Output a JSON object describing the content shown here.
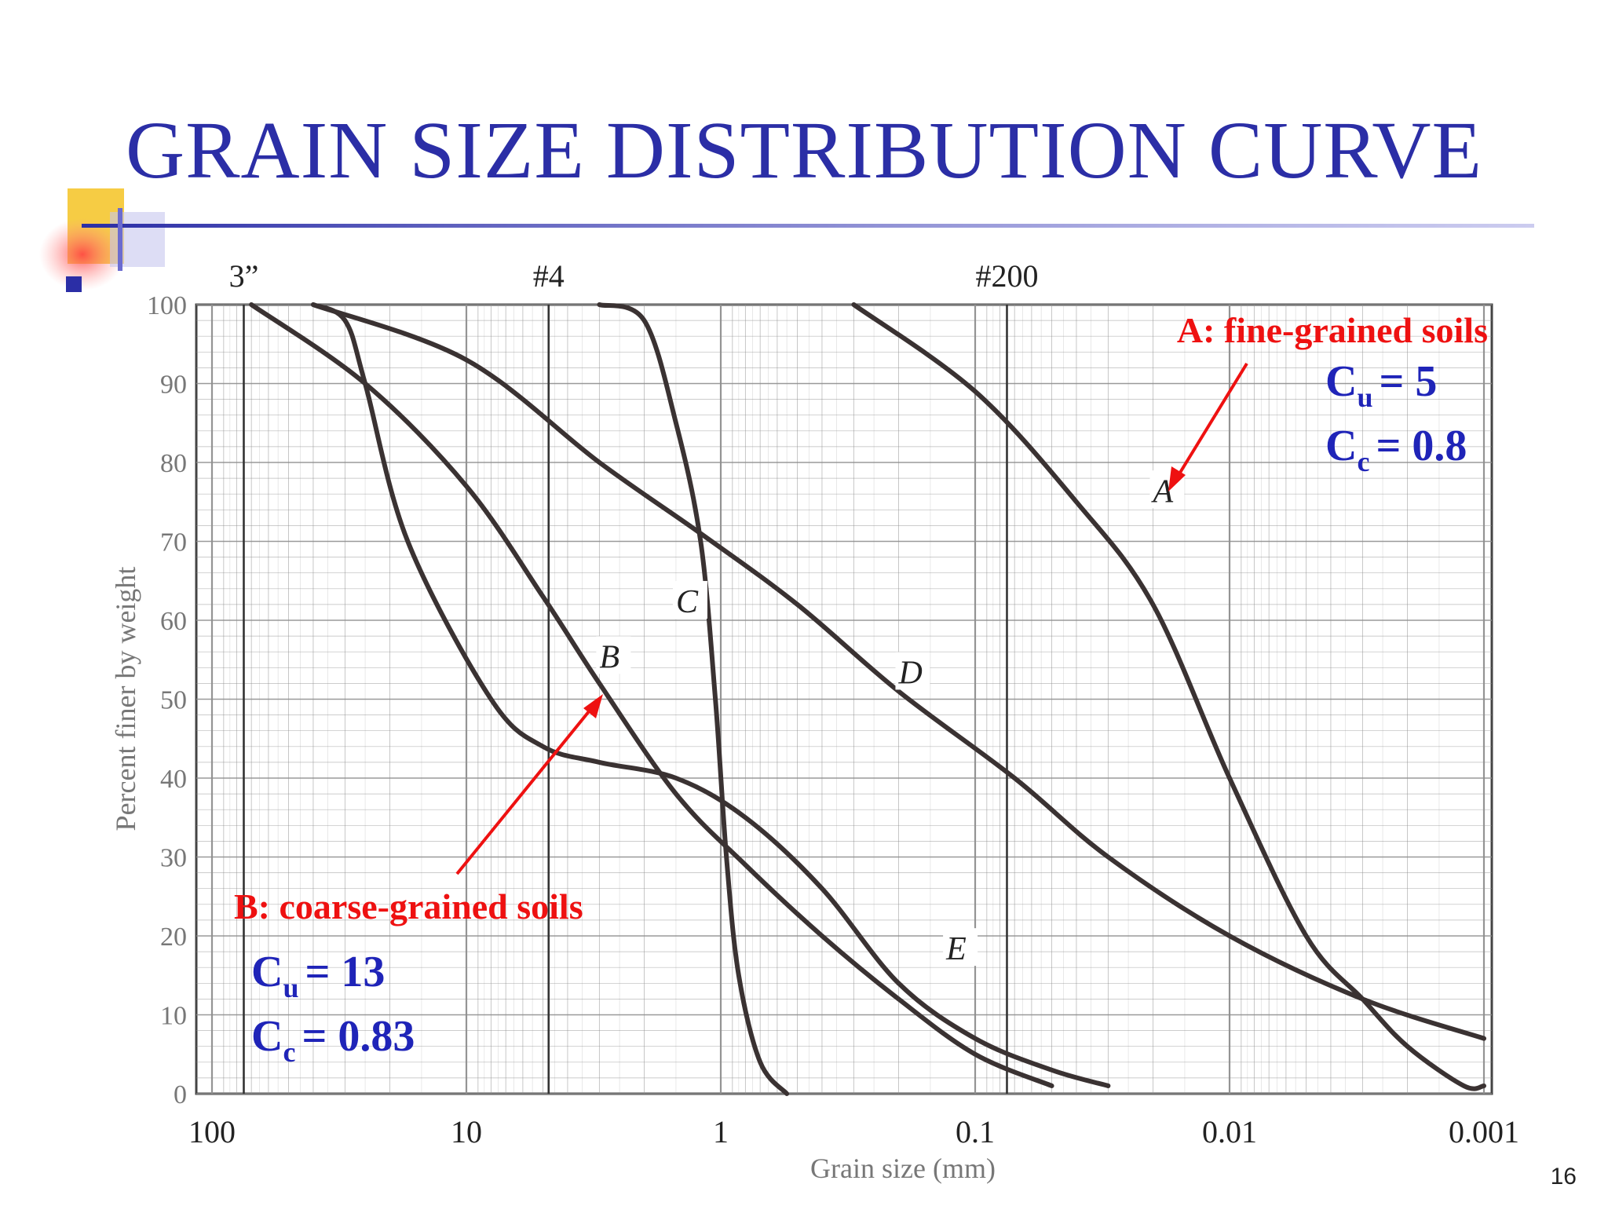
{
  "slide": {
    "title": "GRAIN SIZE DISTRIBUTION CURVE",
    "page_number": "16"
  },
  "colors": {
    "title": "#2b2ea6",
    "annotation_red": "#ee1111",
    "annotation_blue": "#1f24b8",
    "curve": "#3a3232",
    "grid": "#8f8f8f"
  },
  "annotations": {
    "a_label": "A: fine-grained soils",
    "a_cu": "= 5",
    "a_cc": "= 0.8",
    "b_label": "B: coarse-grained soils",
    "b_cu": "= 13",
    "b_cc": "= 0.83",
    "cu_symbol": "C",
    "cu_sub": "u",
    "cc_symbol": "C",
    "cc_sub": "c"
  },
  "chart_data": {
    "type": "line",
    "title": "",
    "xlabel": "Grain size (mm)",
    "ylabel": "Percent finer by weight",
    "x_scale": "log",
    "x_reversed": true,
    "xlim": [
      200,
      0.0008
    ],
    "ylim": [
      0,
      100
    ],
    "x_ticks": [
      {
        "value": 100,
        "label": "100"
      },
      {
        "value": 10,
        "label": "10"
      },
      {
        "value": 1,
        "label": "1"
      },
      {
        "value": 0.1,
        "label": "0.1"
      },
      {
        "value": 0.01,
        "label": "0.01"
      },
      {
        "value": 0.001,
        "label": "0.001"
      }
    ],
    "y_ticks": [
      0,
      10,
      20,
      30,
      40,
      50,
      60,
      70,
      80,
      90,
      100
    ],
    "sieve_markers": [
      {
        "label": "3”",
        "value": 75
      },
      {
        "label": "#4",
        "value": 4.75
      },
      {
        "label": "#200",
        "value": 0.075
      }
    ],
    "grid": true,
    "series": [
      {
        "name": "A",
        "points": [
          [
            0.3,
            100
          ],
          [
            0.1,
            89
          ],
          [
            0.04,
            75
          ],
          [
            0.02,
            62
          ],
          [
            0.01,
            40
          ],
          [
            0.005,
            20
          ],
          [
            0.003,
            12
          ],
          [
            0.002,
            6
          ],
          [
            0.0012,
            1
          ],
          [
            0.001,
            1
          ]
        ]
      },
      {
        "name": "B",
        "points": [
          [
            70,
            100
          ],
          [
            25,
            90
          ],
          [
            10,
            77
          ],
          [
            5,
            63
          ],
          [
            3,
            52
          ],
          [
            1.5,
            38
          ],
          [
            0.8,
            29
          ],
          [
            0.4,
            20
          ],
          [
            0.2,
            12
          ],
          [
            0.1,
            5
          ],
          [
            0.05,
            1
          ]
        ]
      },
      {
        "name": "C",
        "points": [
          [
            3,
            100
          ],
          [
            2,
            98
          ],
          [
            1.5,
            85
          ],
          [
            1.2,
            70
          ],
          [
            1.05,
            50
          ],
          [
            0.95,
            30
          ],
          [
            0.85,
            15
          ],
          [
            0.7,
            4
          ],
          [
            0.55,
            0
          ]
        ]
      },
      {
        "name": "D",
        "points": [
          [
            40,
            100
          ],
          [
            10,
            93
          ],
          [
            3,
            80
          ],
          [
            1.2,
            71
          ],
          [
            0.5,
            62
          ],
          [
            0.2,
            51
          ],
          [
            0.07,
            40
          ],
          [
            0.03,
            30
          ],
          [
            0.01,
            20
          ],
          [
            0.003,
            12
          ],
          [
            0.001,
            7
          ]
        ]
      },
      {
        "name": "E",
        "points": [
          [
            40,
            100
          ],
          [
            30,
            98
          ],
          [
            25,
            90
          ],
          [
            17,
            70
          ],
          [
            8,
            50
          ],
          [
            5,
            44
          ],
          [
            3,
            42
          ],
          [
            1.5,
            40
          ],
          [
            0.8,
            35
          ],
          [
            0.4,
            26
          ],
          [
            0.2,
            14
          ],
          [
            0.1,
            7
          ],
          [
            0.05,
            3
          ],
          [
            0.03,
            1
          ]
        ]
      }
    ],
    "curve_labels": [
      {
        "text": "A",
        "x": 0.02,
        "y": 75
      },
      {
        "text": "B",
        "x": 3,
        "y": 54
      },
      {
        "text": "C",
        "x": 1.5,
        "y": 61
      },
      {
        "text": "D",
        "x": 0.2,
        "y": 52
      },
      {
        "text": "E",
        "x": 0.13,
        "y": 17
      }
    ]
  }
}
